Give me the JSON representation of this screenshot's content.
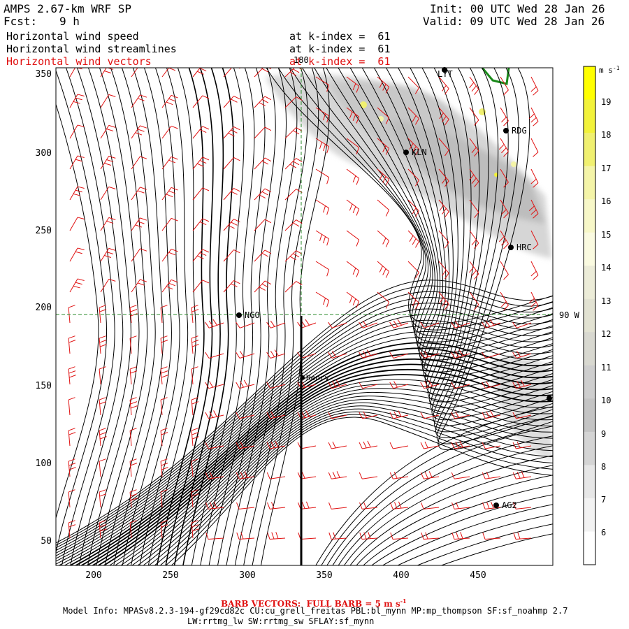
{
  "header": {
    "model": "AMPS 2.67-km WRF SP",
    "fcst_label": "Fcst:",
    "fcst_value": "9 h",
    "init": "Init: 00 UTC Wed 28 Jan 26",
    "valid": "Valid: 09 UTC Wed 28 Jan 26",
    "fields": [
      {
        "name": "Horizontal wind speed",
        "level": "at k-index =  61",
        "color": "#000000"
      },
      {
        "name": "Horizontal wind streamlines",
        "level": "at k-index =  61",
        "color": "#000000"
      },
      {
        "name": "Horizontal wind vectors",
        "level": "at k-index =  61",
        "color": "#e01010"
      }
    ]
  },
  "map": {
    "x_ticks": [
      "200",
      "250",
      "300",
      "350",
      "400",
      "450"
    ],
    "y_ticks": [
      "350",
      "300",
      "250",
      "200",
      "150",
      "100",
      "50"
    ],
    "meridian_label": "180",
    "parallel_label": "90 W",
    "stations": [
      {
        "id": "LYT"
      },
      {
        "id": "RDG"
      },
      {
        "id": "KLN"
      },
      {
        "id": "HRC"
      },
      {
        "id": "NGO"
      },
      {
        "id": "Henry"
      },
      {
        "id": "AG2"
      }
    ],
    "colors": {
      "streamline": "#000000",
      "barb": "#e01010",
      "gridline": "#2a8a2a",
      "coast": "#1a8a1a"
    }
  },
  "colorbar": {
    "unit": "m s",
    "unit_exp": "-1",
    "levels": [
      "19",
      "18",
      "17",
      "16",
      "15",
      "14",
      "13",
      "12",
      "11",
      "10",
      "9",
      "8",
      "7",
      "6"
    ],
    "colors": [
      "#ffff00",
      "#f2f23a",
      "#f0f070",
      "#f4f4a8",
      "#f7f7c8",
      "#fafae0",
      "#ececd8",
      "#e2e2d2",
      "#d8d8d0",
      "#cecece",
      "#c4c4c4",
      "#d4d4d4",
      "#e6e6e6",
      "#f2f2f2",
      "#ffffff"
    ]
  },
  "footer": {
    "barb_note": "BARB VECTORS:  FULL BARB = 5 m s",
    "barb_exp": "-1",
    "model_info": "Model Info: MPASv8.2.3-194-gf29cd82c CU:cu_grell_freitas PBL:bl_mynn MP:mp_thompson SF:sf_noahmp 2.7",
    "physics": "LW:rrtmg_lw SW:rrtmg_sw SFLAY:sf_mynn"
  }
}
